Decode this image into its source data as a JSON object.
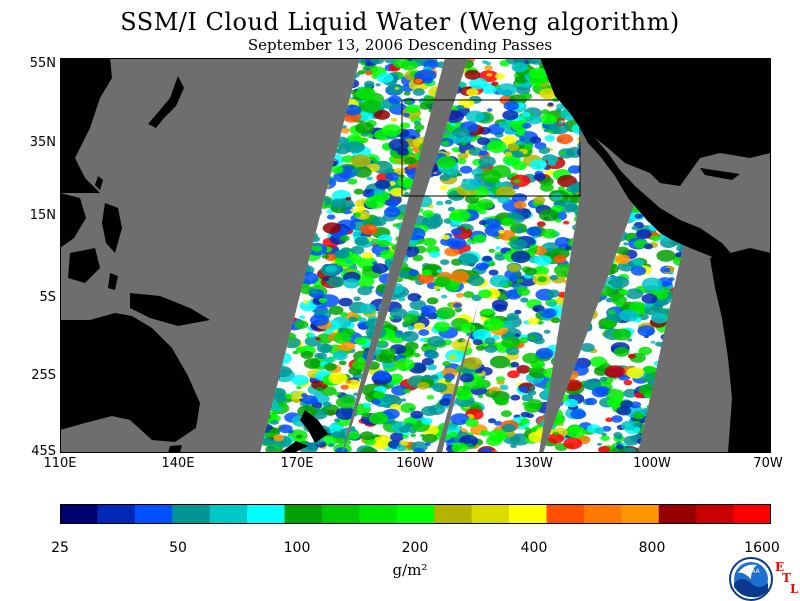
{
  "title": "SSM/I Cloud Liquid Water (Weng algorithm)",
  "subtitle": "September 13, 2006  Descending Passes",
  "map": {
    "lat_labels": [
      "55N",
      "35N",
      "15N",
      "5S",
      "25S",
      "45S"
    ],
    "lon_labels": [
      "110E",
      "140E",
      "170E",
      "160W",
      "130W",
      "100W",
      "70W"
    ],
    "colors": {
      "land": "#000000",
      "no_data": "#6e6e6e",
      "clear": "#ffffff"
    }
  },
  "colorbar": {
    "colors": [
      "#00006e",
      "#0028b4",
      "#0050ff",
      "#009696",
      "#00c8c8",
      "#00ffff",
      "#00a000",
      "#00c800",
      "#00e600",
      "#00ff00",
      "#b4b400",
      "#dcdc00",
      "#ffff00",
      "#ff5000",
      "#ff7800",
      "#ff9600",
      "#960000",
      "#c80000",
      "#ff0000"
    ],
    "labels": [
      "25",
      "50",
      "100",
      "200",
      "400",
      "800",
      "1600"
    ],
    "units": "g/m²"
  },
  "logo": {
    "noaa_text": "NOAA",
    "etl_letters": [
      "E",
      "T",
      "L"
    ]
  }
}
